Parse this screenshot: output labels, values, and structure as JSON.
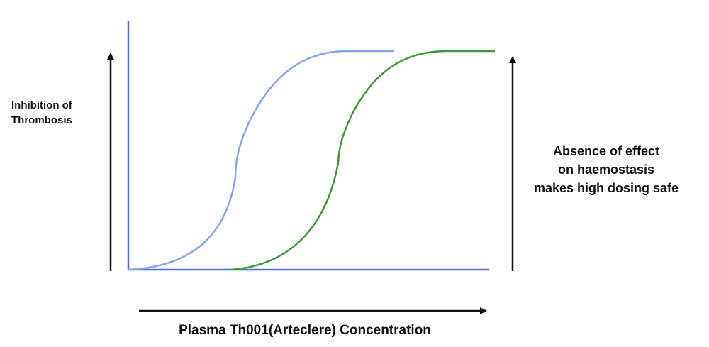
{
  "labels": {
    "y_axis_lines": [
      "Inhibition of",
      "Thrombosis"
    ],
    "x_axis": "Plasma Th001(Arteclere) Concentration",
    "right_annotation_lines": [
      "Absence of effect",
      "on haemostasis",
      "makes high dosing safe"
    ]
  },
  "colors": {
    "axes": "#4a6fe3",
    "curve_blue": "#7fa6ee",
    "curve_green": "#3f9a36",
    "arrows": "#111111",
    "text": "#111111"
  }
}
